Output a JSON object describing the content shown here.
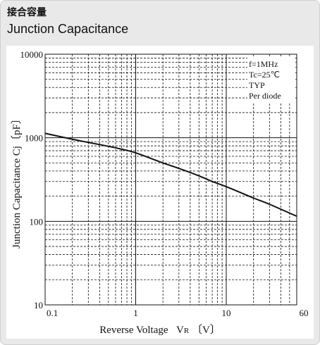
{
  "header": {
    "title_jp": "接合容量",
    "title_en": "Junction Capacitance"
  },
  "chart_data": {
    "type": "line",
    "title": "Junction Capacitance",
    "xlabel": "Reverse Voltage Vʀ〔V〕",
    "xlabel_text": "Reverse Voltage",
    "xlabel_symbol": "V",
    "xlabel_subscript": "R",
    "xlabel_unit": "〔V〕",
    "ylabel": "Junction Capacitance Cj〔pF〕",
    "x_scale": "log",
    "y_scale": "log",
    "xlim": [
      0.1,
      60
    ],
    "ylim": [
      10,
      10000
    ],
    "x_ticks": [
      0.1,
      1,
      10,
      60
    ],
    "x_tick_labels": [
      "0.1",
      "1",
      "10",
      "60"
    ],
    "y_ticks": [
      10,
      100,
      1000,
      10000
    ],
    "y_tick_labels": [
      "10",
      "100",
      "1000",
      "10000"
    ],
    "grid": "major solid, minor dashed",
    "annotations": [
      "f=1MHz",
      "Tc=25℃",
      "TYP",
      "Per diode"
    ],
    "annotation_position": "top-right",
    "series": [
      {
        "x": [
          0.1,
          0.2,
          0.3,
          0.5,
          0.7,
          1,
          2,
          3,
          5,
          7,
          10,
          20,
          30,
          60
        ],
        "values": [
          1130,
          960,
          880,
          790,
          730,
          660,
          500,
          430,
          350,
          300,
          260,
          190,
          160,
          115
        ]
      }
    ]
  },
  "colors": {
    "frame_bg": "#e9e9e9",
    "plot_bg": "#ffffff",
    "line": "#111111"
  }
}
